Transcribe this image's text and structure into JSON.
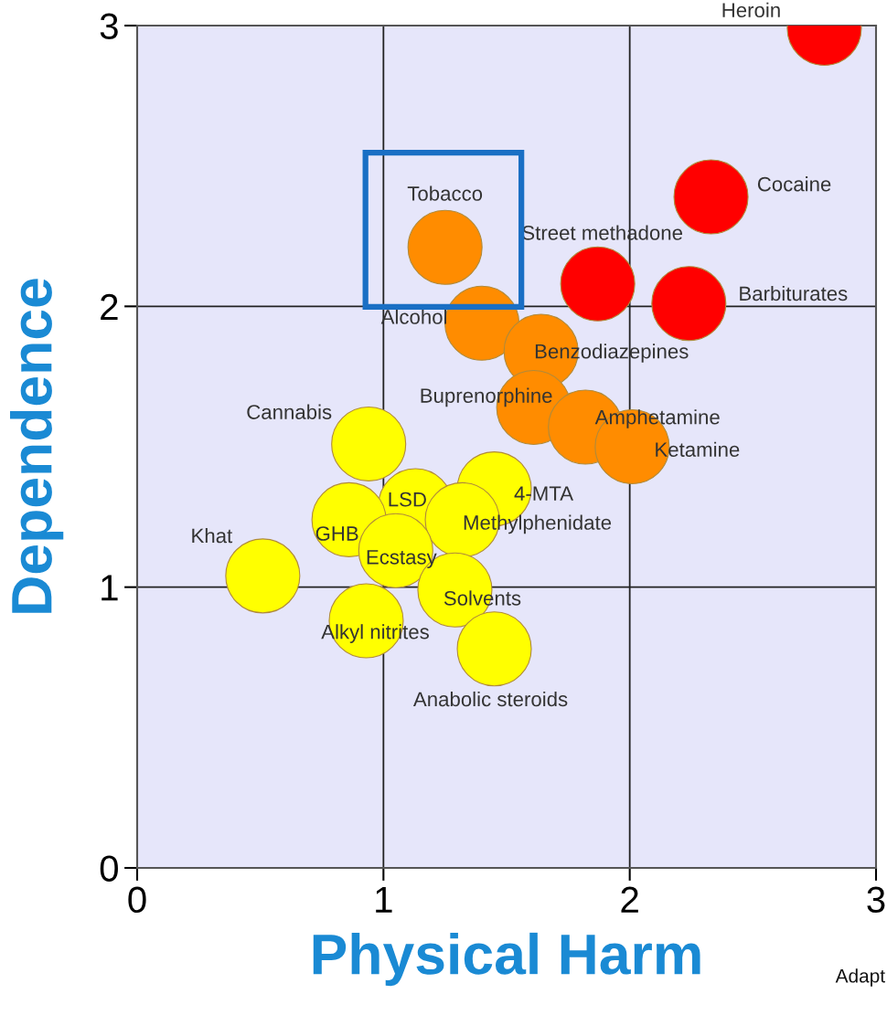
{
  "chart_data": {
    "type": "scatter",
    "xlabel": "Physical Harm",
    "ylabel": "Dependence",
    "xlim": [
      0,
      3
    ],
    "ylim": [
      0,
      3
    ],
    "xticks": [
      0,
      1,
      2,
      3
    ],
    "yticks": [
      0,
      1,
      2,
      3
    ],
    "grid": true,
    "marker": "circle",
    "series": [
      {
        "color": "#ff0000",
        "x": [
          2.79,
          2.33,
          1.87,
          2.24
        ],
        "values": [
          2.99,
          2.39,
          2.08,
          2.01
        ]
      },
      {
        "color": "#ff8c00",
        "x": [
          1.25,
          1.4,
          1.64,
          1.61,
          1.82,
          2.01
        ],
        "values": [
          2.21,
          1.94,
          1.84,
          1.64,
          1.57,
          1.5
        ]
      },
      {
        "color": "#ffff00",
        "x": [
          0.94,
          1.45,
          1.13,
          1.32,
          0.86,
          1.05,
          1.29,
          0.51,
          0.93,
          1.45
        ],
        "values": [
          1.51,
          1.35,
          1.29,
          1.24,
          1.24,
          1.13,
          0.99,
          1.04,
          0.88,
          0.78
        ]
      }
    ],
    "annotations": [
      {
        "text": "Heroin",
        "x": 2.79,
        "y": 2.99
      },
      {
        "text": "Cocaine",
        "x": 2.33,
        "y": 2.39
      },
      {
        "text": "Street methadone",
        "x": 1.87,
        "y": 2.08
      },
      {
        "text": "Barbiturates",
        "x": 2.24,
        "y": 2.01
      },
      {
        "text": "Tobacco",
        "x": 1.25,
        "y": 2.21
      },
      {
        "text": "Alcohol",
        "x": 1.4,
        "y": 1.94
      },
      {
        "text": "Benzodiazepines",
        "x": 1.64,
        "y": 1.84
      },
      {
        "text": "Buprenorphine",
        "x": 1.61,
        "y": 1.64
      },
      {
        "text": "Amphetamine",
        "x": 1.82,
        "y": 1.57
      },
      {
        "text": "Ketamine",
        "x": 2.01,
        "y": 1.5
      },
      {
        "text": "Cannabis",
        "x": 0.94,
        "y": 1.51
      },
      {
        "text": "4-MTA",
        "x": 1.45,
        "y": 1.35
      },
      {
        "text": "LSD",
        "x": 1.13,
        "y": 1.29
      },
      {
        "text": "Methylphenidate",
        "x": 1.32,
        "y": 1.24
      },
      {
        "text": "GHB",
        "x": 0.86,
        "y": 1.24
      },
      {
        "text": "Ecstasy",
        "x": 1.05,
        "y": 1.13
      },
      {
        "text": "Solvents",
        "x": 1.29,
        "y": 0.99
      },
      {
        "text": "Khat",
        "x": 0.51,
        "y": 1.04
      },
      {
        "text": "Alkyl nitrites",
        "x": 0.93,
        "y": 0.88
      },
      {
        "text": "Anabolic steroids",
        "x": 1.45,
        "y": 0.78
      },
      "Adapt"
    ]
  }
}
